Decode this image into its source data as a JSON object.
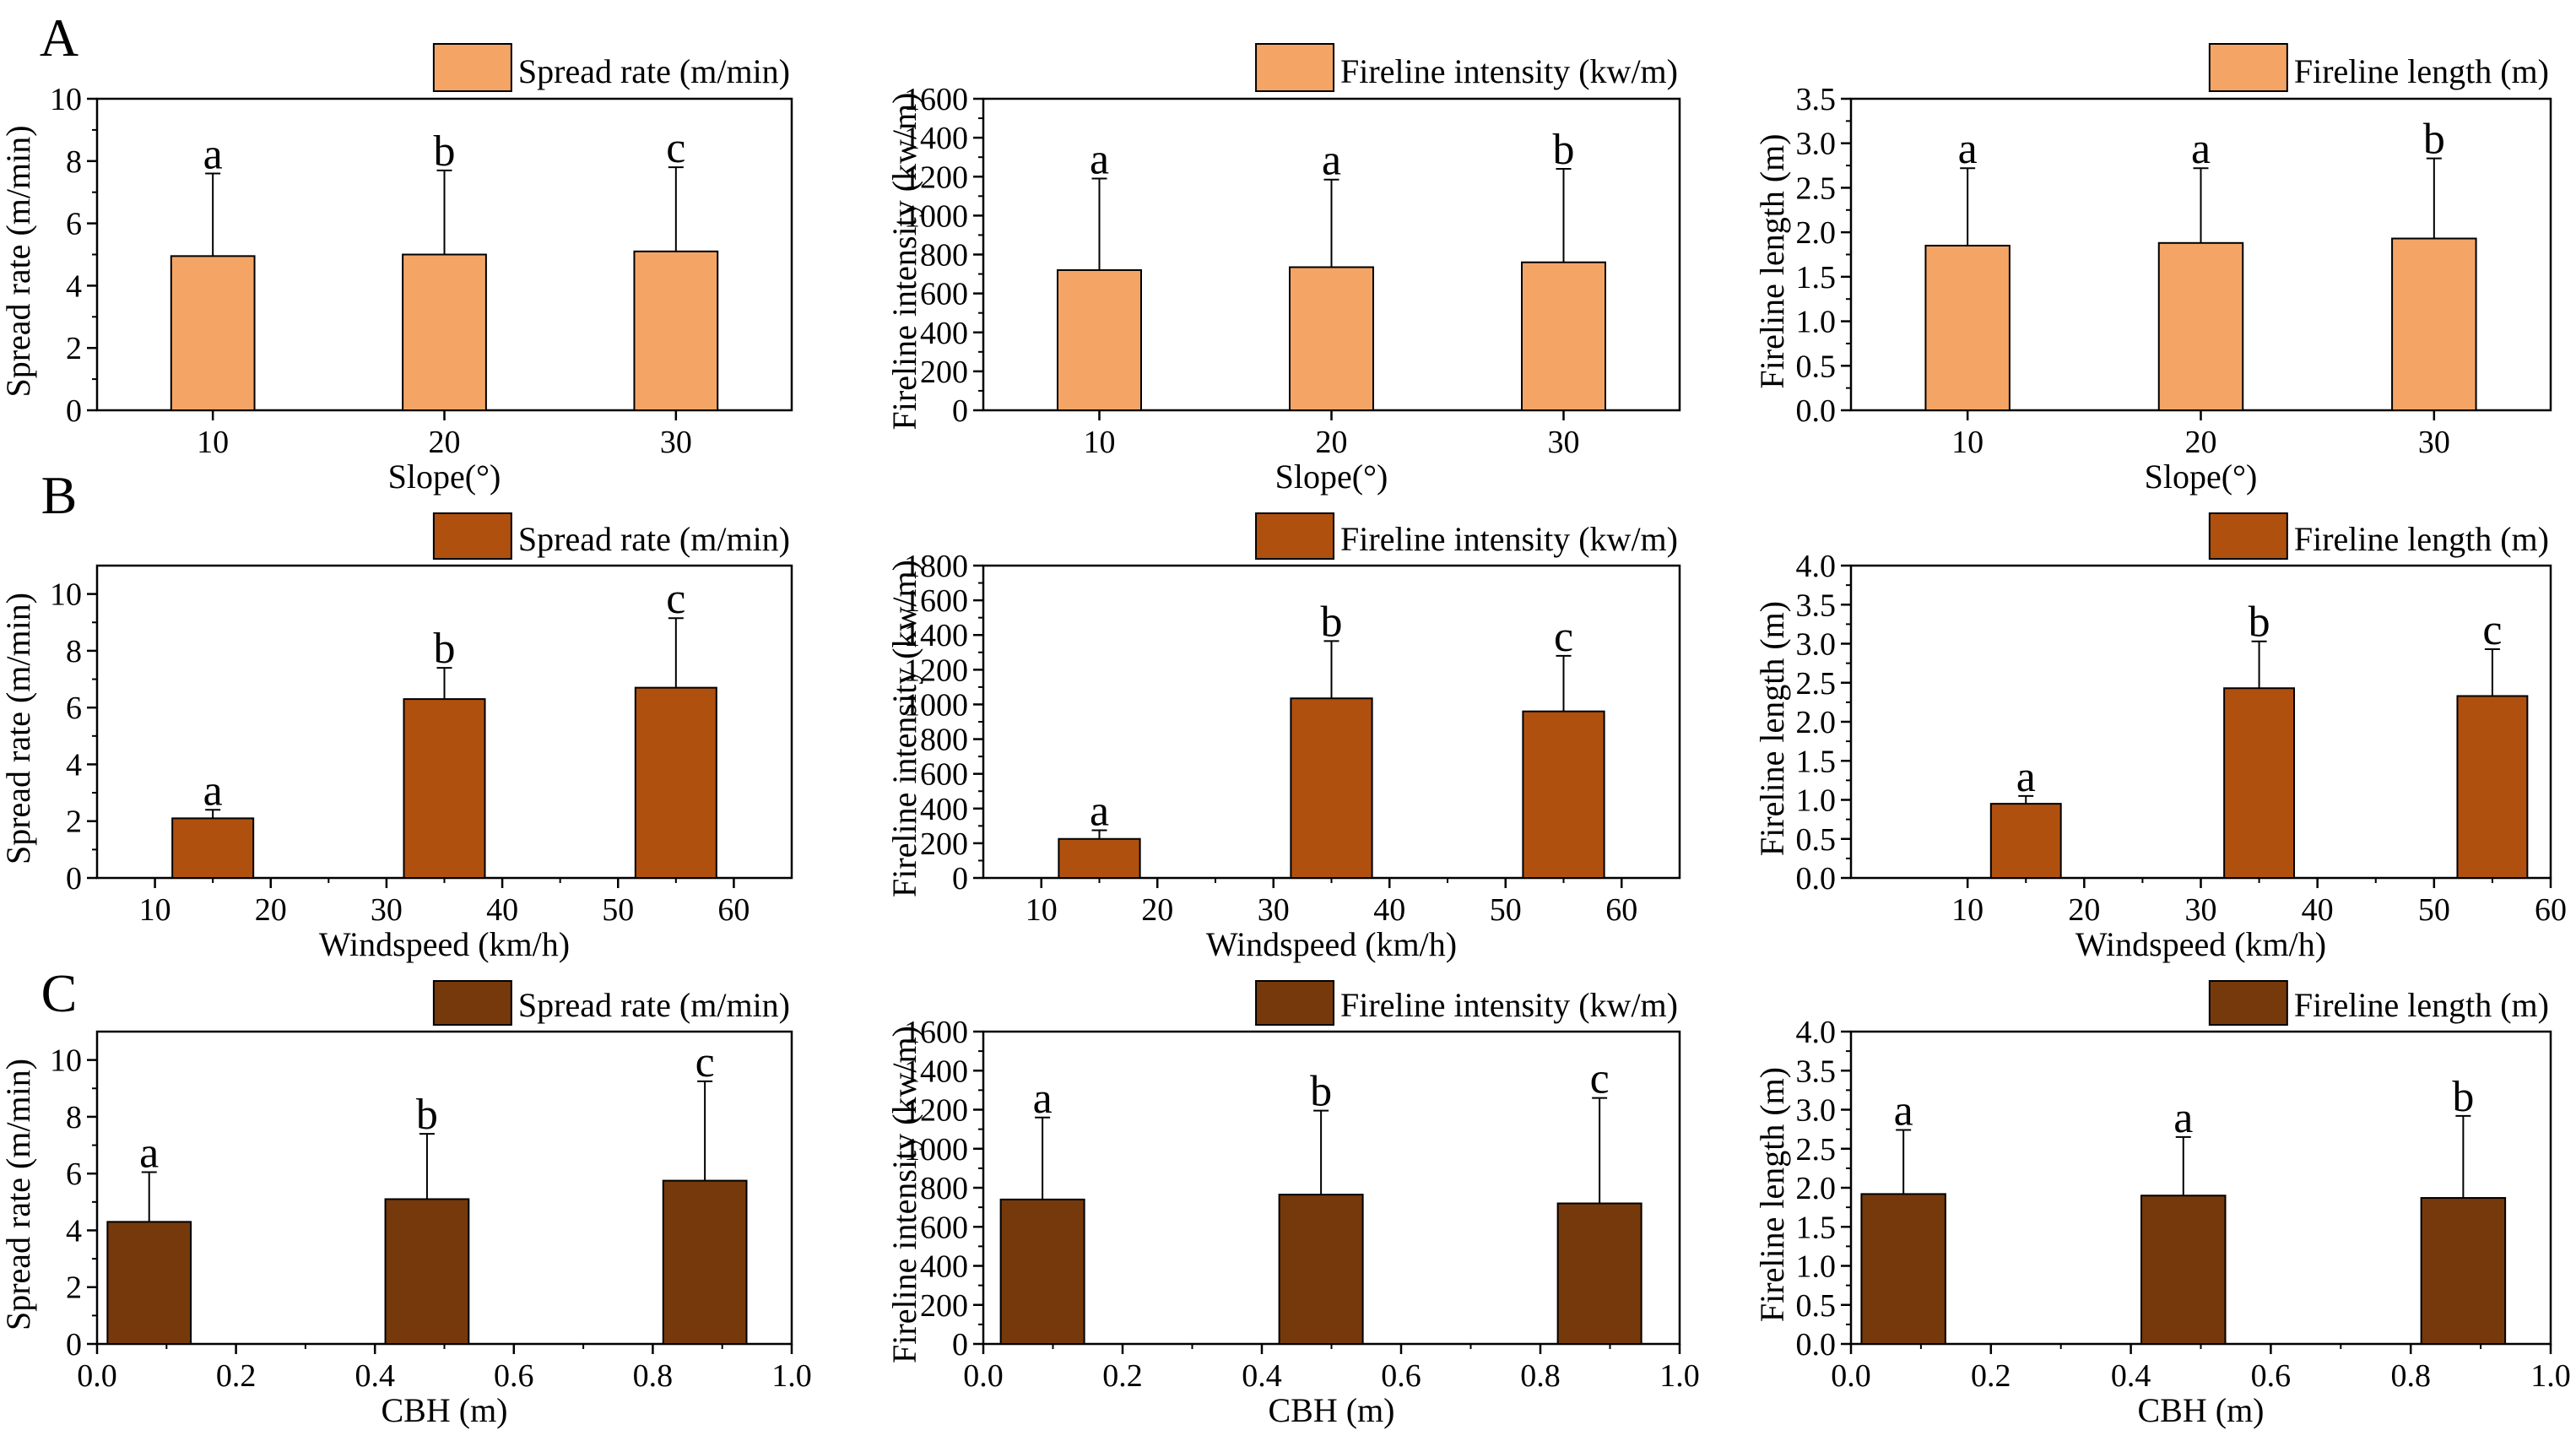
{
  "figure_title": "",
  "rows": [
    {
      "letter": "A",
      "color": "#F4A566"
    },
    {
      "letter": "B",
      "color": "#B0500F"
    },
    {
      "letter": "C",
      "color": "#76390B"
    }
  ],
  "chart_data": [
    {
      "type": "bar",
      "row": 0,
      "col": 0,
      "legend": "Spread rate (m/min)",
      "ylabel": "Spread rate (m/min)",
      "xlabel": "Slope(°)",
      "xscale": "category",
      "categories": [
        "10",
        "20",
        "30"
      ],
      "values": [
        4.95,
        5.0,
        5.1
      ],
      "errors": [
        2.65,
        2.7,
        2.7
      ],
      "letters": [
        "a",
        "b",
        "c"
      ],
      "ylim": [
        0,
        10
      ],
      "yticks": [
        0,
        2,
        4,
        6,
        8,
        10
      ],
      "yticklabels": [
        "0",
        "2",
        "4",
        "6",
        "8",
        "10"
      ],
      "xticklabels": [
        "10",
        "20",
        "30"
      ]
    },
    {
      "type": "bar",
      "row": 0,
      "col": 1,
      "legend": "Fireline intensity (kw/m)",
      "ylabel": "Fireline intensity (kw/m)",
      "xlabel": "Slope(°)",
      "xscale": "category",
      "categories": [
        "10",
        "20",
        "30"
      ],
      "values": [
        720,
        735,
        760
      ],
      "errors": [
        470,
        450,
        480
      ],
      "letters": [
        "a",
        "a",
        "b"
      ],
      "ylim": [
        0,
        1600
      ],
      "yticks": [
        0,
        200,
        400,
        600,
        800,
        1000,
        1200,
        1400,
        1600
      ],
      "yticklabels": [
        "0",
        "200",
        "400",
        "600",
        "800",
        "1000",
        "1200",
        "1400",
        "1600"
      ],
      "xticklabels": [
        "10",
        "20",
        "30"
      ]
    },
    {
      "type": "bar",
      "row": 0,
      "col": 2,
      "legend": "Fireline length (m)",
      "ylabel": "Fireline length (m)",
      "xlabel": "Slope(°)",
      "xscale": "category",
      "categories": [
        "10",
        "20",
        "30"
      ],
      "values": [
        1.85,
        1.88,
        1.93
      ],
      "errors": [
        0.87,
        0.84,
        0.9
      ],
      "letters": [
        "a",
        "a",
        "b"
      ],
      "ylim": [
        0,
        3.5
      ],
      "yticks": [
        0,
        0.5,
        1.0,
        1.5,
        2.0,
        2.5,
        3.0,
        3.5
      ],
      "yticklabels": [
        "0.0",
        "0.5",
        "1.0",
        "1.5",
        "2.0",
        "2.5",
        "3.0",
        "3.5"
      ],
      "xticklabels": [
        "10",
        "20",
        "30"
      ]
    },
    {
      "type": "bar",
      "row": 1,
      "col": 0,
      "legend": "Spread rate (m/min)",
      "ylabel": "Spread rate (m/min)",
      "xlabel": "Windspeed (km/h)",
      "xscale": "linear",
      "xlim": [
        5,
        65
      ],
      "x": [
        15,
        35,
        55
      ],
      "barWidth": 7,
      "values": [
        2.1,
        6.3,
        6.7
      ],
      "errors": [
        0.3,
        1.1,
        2.45
      ],
      "letters": [
        "a",
        "b",
        "c"
      ],
      "ylim": [
        0,
        11
      ],
      "yticks": [
        0,
        2,
        4,
        6,
        8,
        10
      ],
      "yticklabels": [
        "0",
        "2",
        "4",
        "6",
        "8",
        "10"
      ],
      "xticks": [
        10,
        20,
        30,
        40,
        50,
        60
      ],
      "xticklabels": [
        "10",
        "20",
        "30",
        "40",
        "50",
        "60"
      ]
    },
    {
      "type": "bar",
      "row": 1,
      "col": 1,
      "legend": "Fireline intensity (kw/m)",
      "ylabel": "Fireline intensity (kw/m)",
      "xlabel": "Windspeed (km/h)",
      "xscale": "linear",
      "xlim": [
        5,
        65
      ],
      "x": [
        15,
        35,
        55
      ],
      "barWidth": 7,
      "values": [
        225,
        1035,
        960
      ],
      "errors": [
        50,
        330,
        320
      ],
      "letters": [
        "a",
        "b",
        "c"
      ],
      "ylim": [
        0,
        1800
      ],
      "yticks": [
        0,
        200,
        400,
        600,
        800,
        1000,
        1200,
        1400,
        1600,
        1800
      ],
      "yticklabels": [
        "0",
        "200",
        "400",
        "600",
        "800",
        "1000",
        "1200",
        "1400",
        "1600",
        "1800"
      ],
      "xticks": [
        10,
        20,
        30,
        40,
        50,
        60
      ],
      "xticklabels": [
        "10",
        "20",
        "30",
        "40",
        "50",
        "60"
      ]
    },
    {
      "type": "bar",
      "row": 1,
      "col": 2,
      "legend": "Fireline length (m)",
      "ylabel": "Fireline length (m)",
      "xlabel": "Windspeed (km/h)",
      "xscale": "linear",
      "xlim": [
        0,
        60
      ],
      "x": [
        15,
        35,
        55
      ],
      "barWidth": 6,
      "values": [
        0.95,
        2.43,
        2.33
      ],
      "errors": [
        0.1,
        0.6,
        0.6
      ],
      "letters": [
        "a",
        "b",
        "c"
      ],
      "ylim": [
        0,
        4
      ],
      "yticks": [
        0,
        0.5,
        1.0,
        1.5,
        2.0,
        2.5,
        3.0,
        3.5,
        4.0
      ],
      "yticklabels": [
        "0.0",
        "0.5",
        "1.0",
        "1.5",
        "2.0",
        "2.5",
        "3.0",
        "3.5",
        "4.0"
      ],
      "xticks": [
        10,
        20,
        30,
        40,
        50,
        60
      ],
      "xticklabels": [
        "10",
        "20",
        "30",
        "40",
        "50",
        "60"
      ]
    },
    {
      "type": "bar",
      "row": 2,
      "col": 0,
      "legend": "Spread rate (m/min)",
      "ylabel": "Spread rate (m/min)",
      "xlabel": "CBH (m)",
      "xscale": "linear",
      "xlim": [
        0,
        1
      ],
      "x": [
        0.075,
        0.475,
        0.875
      ],
      "barWidth": 0.12,
      "values": [
        4.3,
        5.1,
        5.75
      ],
      "errors": [
        1.75,
        2.3,
        3.5
      ],
      "letters": [
        "a",
        "b",
        "c"
      ],
      "ylim": [
        0,
        11
      ],
      "yticks": [
        0,
        2,
        4,
        6,
        8,
        10
      ],
      "yticklabels": [
        "0",
        "2",
        "4",
        "6",
        "8",
        "10"
      ],
      "xticks": [
        0,
        0.2,
        0.4,
        0.6,
        0.8,
        1.0
      ],
      "xticklabels": [
        "0.0",
        "0.2",
        "0.4",
        "0.6",
        "0.8",
        "1.0"
      ]
    },
    {
      "type": "bar",
      "row": 2,
      "col": 1,
      "legend": "Fireline intensity (kw/m)",
      "ylabel": "Fireline intensity (kw/m)",
      "xlabel": "CBH (m)",
      "xscale": "linear",
      "xlim": [
        0,
        1
      ],
      "x": [
        0.085,
        0.485,
        0.885
      ],
      "barWidth": 0.12,
      "values": [
        740,
        765,
        720
      ],
      "errors": [
        420,
        430,
        540
      ],
      "letters": [
        "a",
        "b",
        "c"
      ],
      "ylim": [
        0,
        1600
      ],
      "yticks": [
        0,
        200,
        400,
        600,
        800,
        1000,
        1200,
        1400,
        1600
      ],
      "yticklabels": [
        "0",
        "200",
        "400",
        "600",
        "800",
        "1000",
        "1200",
        "1400",
        "1600"
      ],
      "xticks": [
        0,
        0.2,
        0.4,
        0.6,
        0.8,
        1.0
      ],
      "xticklabels": [
        "0.0",
        "0.2",
        "0.4",
        "0.6",
        "0.8",
        "1.0"
      ]
    },
    {
      "type": "bar",
      "row": 2,
      "col": 2,
      "legend": "Fireline length (m)",
      "ylabel": "Fireline length (m)",
      "xlabel": "CBH (m)",
      "xscale": "linear",
      "xlim": [
        0,
        1
      ],
      "x": [
        0.075,
        0.475,
        0.875
      ],
      "barWidth": 0.12,
      "values": [
        1.92,
        1.9,
        1.87
      ],
      "errors": [
        0.82,
        0.75,
        1.05
      ],
      "letters": [
        "a",
        "a",
        "b"
      ],
      "ylim": [
        0,
        4
      ],
      "yticks": [
        0,
        0.5,
        1.0,
        1.5,
        2.0,
        2.5,
        3.0,
        3.5,
        4.0
      ],
      "yticklabels": [
        "0.0",
        "0.5",
        "1.0",
        "1.5",
        "2.0",
        "2.5",
        "3.0",
        "3.5",
        "4.0"
      ],
      "xticks": [
        0,
        0.2,
        0.4,
        0.6,
        0.8,
        1.0
      ],
      "xticklabels": [
        "0.0",
        "0.2",
        "0.4",
        "0.6",
        "0.8",
        "1.0"
      ]
    }
  ]
}
